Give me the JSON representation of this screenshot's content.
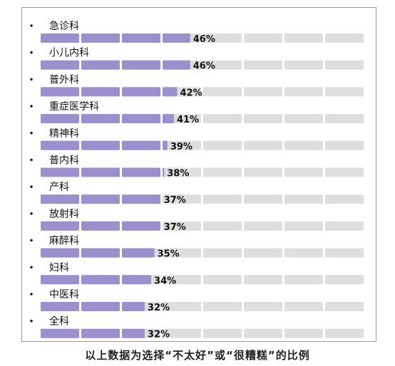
{
  "chart_data": {
    "type": "bar",
    "title": "",
    "xlabel": "",
    "ylabel": "",
    "xlim": [
      0,
      100
    ],
    "unit": "%",
    "segments": 8,
    "categories": [
      "急诊科",
      "小儿内科",
      "普外科",
      "重症医学科",
      "精神科",
      "普内科",
      "产科",
      "放射科",
      "麻醉科",
      "妇科",
      "中医科",
      "全科"
    ],
    "values": [
      46,
      46,
      42,
      41,
      39,
      38,
      37,
      37,
      35,
      34,
      32,
      32
    ],
    "value_labels": [
      "46%",
      "46%",
      "42%",
      "41%",
      "39%",
      "38%",
      "37%",
      "37%",
      "35%",
      "34%",
      "32%",
      "32%"
    ],
    "colors": {
      "filled": "#9b8fce",
      "empty": "#dedede",
      "text": "#111111"
    }
  },
  "caption": "以上数据为选择“不太好”或“很糟糕”的比例"
}
